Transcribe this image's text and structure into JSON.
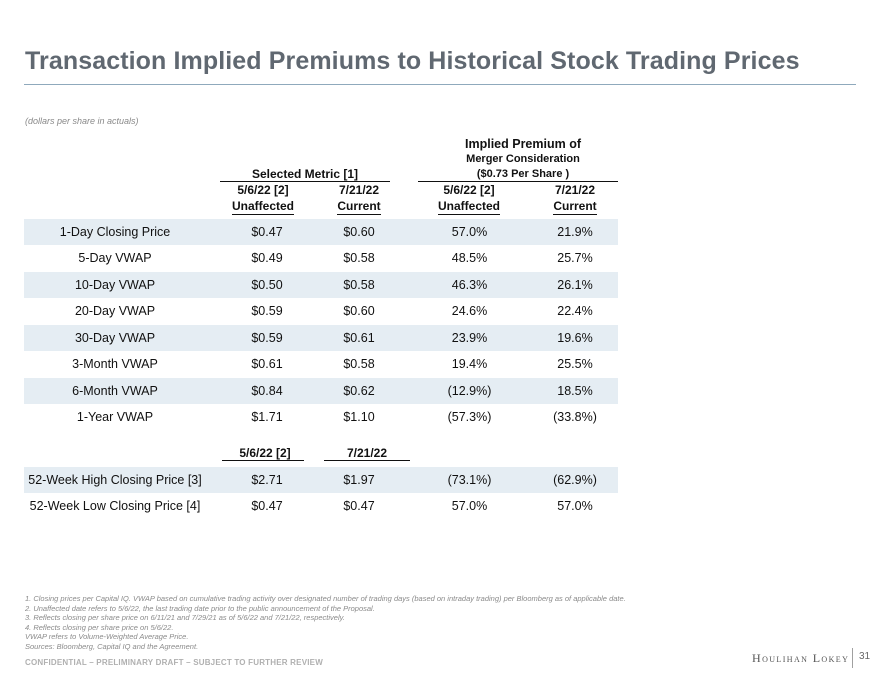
{
  "title": "Transaction Implied Premiums to Historical Stock Trading Prices",
  "units_note": "(dollars per share in actuals)",
  "premium_heading": {
    "line1": "Implied Premium of",
    "line2": "Merger Consideration",
    "line3": "($0.73 Per Share )"
  },
  "metric_group_label": "Selected Metric [1]",
  "columns": [
    {
      "line1": "5/6/22 [2]",
      "line2": "Unaffected"
    },
    {
      "line1": "7/21/22",
      "line2": "Current"
    },
    {
      "line1": "5/6/22 [2]",
      "line2": "Unaffected"
    },
    {
      "line1": "7/21/22",
      "line2": "Current"
    }
  ],
  "rows": [
    {
      "label": "1-Day Closing Price",
      "v1": "$0.47",
      "v2": "$0.60",
      "p1": "57.0%",
      "p2": "21.9%"
    },
    {
      "label": "5-Day VWAP",
      "v1": "$0.49",
      "v2": "$0.58",
      "p1": "48.5%",
      "p2": "25.7%"
    },
    {
      "label": "10-Day VWAP",
      "v1": "$0.50",
      "v2": "$0.58",
      "p1": "46.3%",
      "p2": "26.1%"
    },
    {
      "label": "20-Day VWAP",
      "v1": "$0.59",
      "v2": "$0.60",
      "p1": "24.6%",
      "p2": "22.4%"
    },
    {
      "label": "30-Day VWAP",
      "v1": "$0.59",
      "v2": "$0.61",
      "p1": "23.9%",
      "p2": "19.6%"
    },
    {
      "label": "3-Month VWAP",
      "v1": "$0.61",
      "v2": "$0.58",
      "p1": "19.4%",
      "p2": "25.5%"
    },
    {
      "label": "6-Month VWAP",
      "v1": "$0.84",
      "v2": "$0.62",
      "p1": "(12.9%)",
      "p2": "18.5%"
    },
    {
      "label": "1-Year VWAP",
      "v1": "$1.71",
      "v2": "$1.10",
      "p1": "(57.3%)",
      "p2": "(33.8%)"
    }
  ],
  "sub_headers": {
    "h1": "5/6/22 [2]",
    "h2": "7/21/22"
  },
  "week52_rows": [
    {
      "label": "52-Week High Closing Price [3]",
      "v1": "$2.71",
      "v2": "$1.97",
      "p1": "(73.1%)",
      "p2": "(62.9%)"
    },
    {
      "label": "52-Week Low Closing Price [4]",
      "v1": "$0.47",
      "v2": "$0.47",
      "p1": "57.0%",
      "p2": "57.0%"
    }
  ],
  "footnotes": [
    "1.  Closing prices per Capital IQ. VWAP based on cumulative trading activity over designated number of trading days (based on intraday trading) per Bloomberg as of applicable date.",
    "2.  Unaffected date refers to 5/6/22, the last trading date prior to the public announcement of the Proposal.",
    "3.  Reflects closing per share price on 6/11/21 and 7/29/21 as of 5/6/22 and 7/21/22, respectively.",
    "4.  Reflects closing per share price on 5/6/22.",
    "VWAP refers to Volume-Weighted Average Price.",
    "Sources: Bloomberg, Capital IQ and the Agreement."
  ],
  "confidential": "CONFIDENTIAL – PRELIMINARY DRAFT – SUBJECT TO FURTHER REVIEW",
  "logo_text": "Houlihan Lokey",
  "page_number": "31",
  "colors": {
    "title": "#606871",
    "row_shade": "#e5edf3",
    "rule": "#8fa9bc"
  }
}
